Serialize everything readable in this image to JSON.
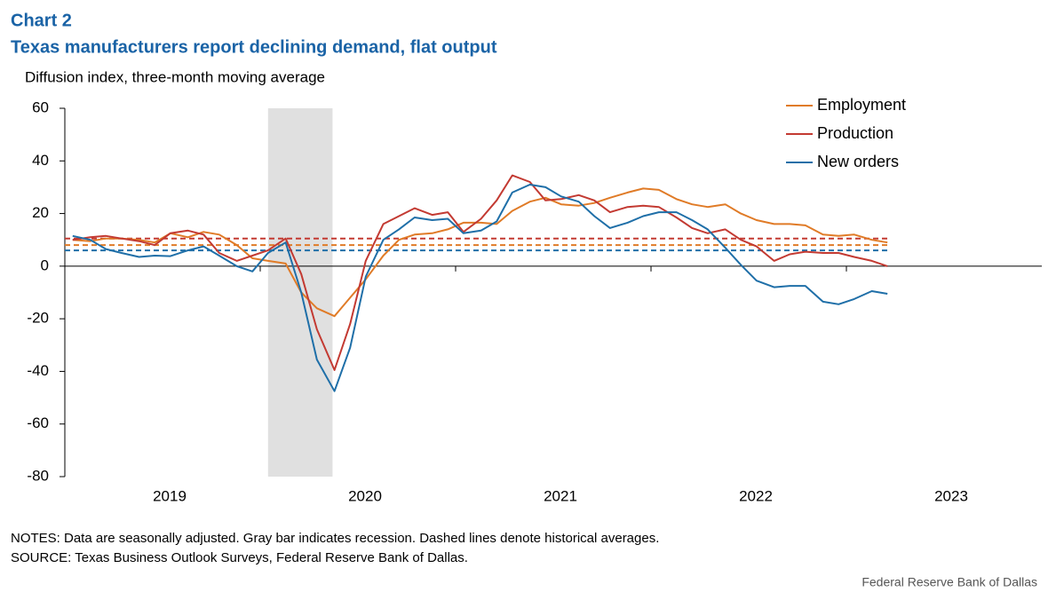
{
  "chart_data": {
    "type": "line",
    "label": "Chart 2",
    "title": "Texas manufacturers report declining demand, flat output",
    "subtitle": "Diffusion index, three-month moving average",
    "notes": "NOTES: Data are seasonally adjusted. Gray bar indicates recession. Dashed lines denote historical averages.",
    "source": "SOURCE: Texas Business Outlook Surveys, Federal Reserve Bank of Dallas.",
    "footer": "Federal Reserve  Bank of Dallas",
    "xlim": [
      2019,
      2024
    ],
    "xticks": [
      {
        "value": 2019.5,
        "label": "2019"
      },
      {
        "value": 2020.5,
        "label": "2020"
      },
      {
        "value": 2021.5,
        "label": "2021"
      },
      {
        "value": 2022.5,
        "label": "2022"
      },
      {
        "value": 2023.5,
        "label": "2023"
      }
    ],
    "ylim": [
      -80,
      60
    ],
    "yticks": [
      -80,
      -60,
      -40,
      -20,
      0,
      20,
      40,
      60
    ],
    "recession": [
      2020.04,
      2020.37
    ],
    "legend": "top-right",
    "x": [
      2019.04,
      2019.13,
      2019.21,
      2019.29,
      2019.38,
      2019.46,
      2019.54,
      2019.63,
      2019.71,
      2019.79,
      2019.88,
      2019.96,
      2020.04,
      2020.13,
      2020.21,
      2020.29,
      2020.38,
      2020.46,
      2020.54,
      2020.63,
      2020.71,
      2020.79,
      2020.88,
      2020.96,
      2021.04,
      2021.13,
      2021.21,
      2021.29,
      2021.38,
      2021.46,
      2021.54,
      2021.63,
      2021.71,
      2021.79,
      2021.88,
      2021.96,
      2022.04,
      2022.13,
      2022.21,
      2022.29,
      2022.38,
      2022.46,
      2022.54,
      2022.63,
      2022.71,
      2022.79,
      2022.88,
      2022.96,
      2023.04,
      2023.13,
      2023.21
    ],
    "series": [
      {
        "name": "Employment",
        "color": "#e07b27",
        "average": 8,
        "values": [
          10,
          9.5,
          10.5,
          10.5,
          10,
          9,
          12.5,
          11,
          13,
          12,
          8,
          3,
          2,
          1,
          -10,
          -16,
          -19,
          -12,
          -5,
          4,
          10,
          12,
          12.5,
          14,
          16.5,
          16.5,
          16,
          21,
          24.5,
          26,
          23.5,
          23,
          24,
          26,
          28,
          29.5,
          29,
          25.5,
          23.5,
          22.5,
          23.5,
          20,
          17.5,
          16,
          16,
          15.5,
          12,
          11.5,
          12,
          10,
          9
        ]
      },
      {
        "name": "Production",
        "color": "#c33a32",
        "average": 10.5,
        "values": [
          10,
          11,
          11.5,
          10.5,
          9.5,
          8,
          12.5,
          13.5,
          12,
          5,
          2,
          4,
          6,
          10.5,
          -3,
          -24,
          -39.5,
          -22,
          2,
          16,
          19,
          22,
          19.5,
          20.5,
          13,
          18,
          25,
          34.5,
          32,
          25,
          25.5,
          27,
          25,
          20.5,
          22.5,
          23,
          22.5,
          18.5,
          14.5,
          12.5,
          14,
          10,
          7.5,
          2,
          4.5,
          5.5,
          5,
          5,
          3.5,
          2,
          0
        ]
      },
      {
        "name": "New orders",
        "color": "#1f6fa8",
        "average": 6,
        "values": [
          11.5,
          10,
          6.5,
          5,
          3.5,
          4,
          3.8,
          6,
          7.5,
          4,
          0,
          -2,
          5,
          9,
          -10,
          -35.5,
          -47.5,
          -31,
          -4,
          10,
          14,
          18.5,
          17.5,
          18,
          12.5,
          13.5,
          17,
          28,
          31,
          30,
          26.5,
          24.5,
          19,
          14.5,
          16.5,
          19,
          20.5,
          20.5,
          17.5,
          14,
          7,
          0.5,
          -5.5,
          -8,
          -7.5,
          -7.5,
          -13.5,
          -14.5,
          -12.5,
          -9.5,
          -10.5
        ]
      }
    ]
  }
}
